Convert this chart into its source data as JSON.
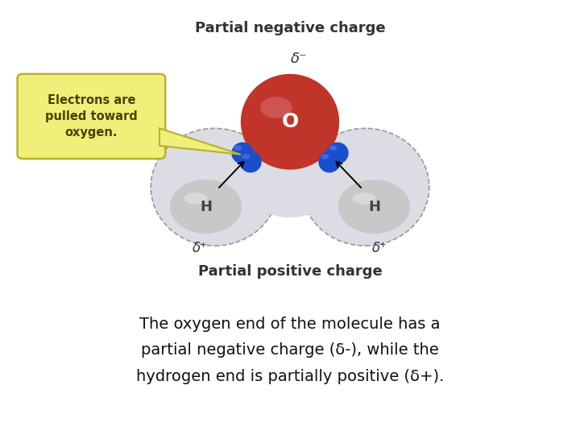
{
  "bg_color": "#ffffff",
  "title_top": "Partial negative charge",
  "title_bottom": "Partial positive charge",
  "title_fontsize": 13,
  "delta_minus": "δ⁻",
  "delta_plus": "δ⁺",
  "oxygen_label": "O",
  "hydrogen_label": "H",
  "oxygen_color": "#c0342a",
  "oxygen_highlight": "#d97070",
  "hydrogen_color": "#c8c8c8",
  "hydrogen_highlight": "#e8e8e8",
  "electron_color": "#1a4fcc",
  "electron_highlight": "#5577ee",
  "callout_text": "Electrons are\npulled toward\noxygen.",
  "callout_bg": "#f0ef7a",
  "callout_border": "#b8b030",
  "caption_line1": "The oxygen end of the molecule has a",
  "caption_line2": "partial negative charge (δ-), while the",
  "caption_line3": "hydrogen end is partially positive (δ+).",
  "caption_fontsize": 14,
  "cloud_color": "#dcdce4",
  "cloud_edge": "#999999",
  "text_color": "#333333"
}
